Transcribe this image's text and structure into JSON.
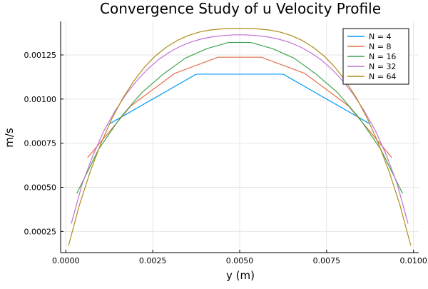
{
  "chart_data": {
    "type": "line",
    "title": "Convergence Study of u Velocity Profile",
    "xlabel": "y (m)",
    "ylabel": "m/s",
    "xlim": [
      -0.00015,
      0.01015
    ],
    "ylim": [
      0.00013,
      0.00144
    ],
    "xticks": [
      0.0,
      0.0025,
      0.005,
      0.0075,
      0.01
    ],
    "xtick_labels": [
      "0.0000",
      "0.0025",
      "0.0050",
      "0.0075",
      "0.0100"
    ],
    "yticks": [
      0.00025,
      0.0005,
      0.00075,
      0.001,
      0.00125
    ],
    "ytick_labels": [
      "0.00025",
      "0.00050",
      "0.00075",
      "0.00100",
      "0.00125"
    ],
    "grid": true,
    "legend_position": "top-right",
    "series": [
      {
        "name": "N = 4",
        "color": "#009AFA",
        "x": [
          0.00125,
          0.00375,
          0.00625,
          0.00875
        ],
        "y": [
          0.000859,
          0.001141,
          0.001141,
          0.000859
        ]
      },
      {
        "name": "N = 8",
        "color": "#E36F47",
        "x": [
          0.000625,
          0.001875,
          0.003125,
          0.004375,
          0.005625,
          0.006875,
          0.008125,
          0.009375
        ],
        "y": [
          0.000668,
          0.000962,
          0.001145,
          0.001237,
          0.001237,
          0.001145,
          0.000962,
          0.000668
        ]
      },
      {
        "name": "N = 16",
        "color": "#3EA44E",
        "x": [
          0.0003125,
          0.0009375,
          0.0015625,
          0.0021875,
          0.0028125,
          0.0034375,
          0.0040625,
          0.0046875,
          0.0053125,
          0.0059375,
          0.0065625,
          0.0071875,
          0.0078125,
          0.0084375,
          0.0090625,
          0.0096875
        ],
        "y": [
          0.000464,
          0.000714,
          0.000893,
          0.001037,
          0.001143,
          0.001232,
          0.001286,
          0.001321,
          0.001321,
          0.001286,
          0.001232,
          0.001143,
          0.001037,
          0.000893,
          0.000714,
          0.000464
        ]
      },
      {
        "name": "N = 32",
        "color": "#C271D2",
        "x": [
          0.00015625,
          0.00046875,
          0.00078125,
          0.00109375,
          0.00140625,
          0.00171875,
          0.00203125,
          0.00234375,
          0.00265625,
          0.00296875,
          0.00328125,
          0.00359375,
          0.00390625,
          0.00421875,
          0.00453125,
          0.00484375,
          0.00515625,
          0.00546875,
          0.00578125,
          0.00609375,
          0.00640625,
          0.00671875,
          0.00703125,
          0.00734375,
          0.00765625,
          0.00796875,
          0.00828125,
          0.00859375,
          0.00890625,
          0.00921875,
          0.00953125,
          0.00984375
        ],
        "y": [
          0.000294,
          0.000518,
          0.000682,
          0.00082,
          0.000929,
          0.001024,
          0.001102,
          0.001168,
          0.001222,
          0.001264,
          0.001298,
          0.001323,
          0.001341,
          0.001353,
          0.00136,
          0.001364,
          0.001364,
          0.00136,
          0.001353,
          0.001341,
          0.001323,
          0.001298,
          0.001264,
          0.001222,
          0.001168,
          0.001102,
          0.001024,
          0.000929,
          0.00082,
          0.000682,
          0.000518,
          0.000294
        ]
      },
      {
        "name": "N = 64",
        "color": "#AC8D18",
        "x": [
          7.8e-05,
          0.000391,
          0.000703,
          0.001016,
          0.001328,
          0.001641,
          0.001953,
          0.002266,
          0.002578,
          0.002891,
          0.003203,
          0.003516,
          0.003828,
          0.004141,
          0.004453,
          0.004766,
          0.005234,
          0.005547,
          0.005859,
          0.006172,
          0.006484,
          0.006797,
          0.007109,
          0.007422,
          0.007734,
          0.008047,
          0.008359,
          0.008672,
          0.008984,
          0.009297,
          0.009609,
          0.009922
        ],
        "y": [
          0.00017,
          0.0004,
          0.00059,
          0.000752,
          0.00089,
          0.001006,
          0.001102,
          0.001182,
          0.001245,
          0.001294,
          0.001332,
          0.00136,
          0.001379,
          0.001391,
          0.001397,
          0.0014,
          0.0014,
          0.001397,
          0.001391,
          0.001379,
          0.00136,
          0.001332,
          0.001294,
          0.001245,
          0.001182,
          0.001102,
          0.001006,
          0.00089,
          0.000752,
          0.00059,
          0.0004,
          0.00017
        ]
      }
    ]
  }
}
